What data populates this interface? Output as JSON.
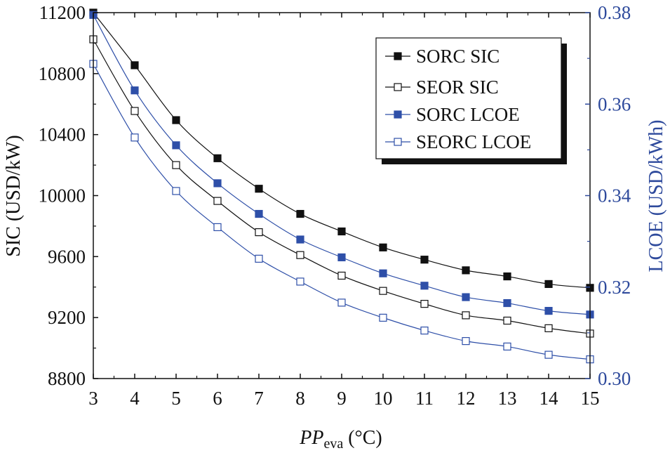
{
  "chart_data": {
    "type": "line",
    "x": [
      3,
      4,
      5,
      6,
      7,
      8,
      9,
      10,
      11,
      12,
      13,
      14,
      15
    ],
    "xlabel": {
      "main": "PP",
      "sub": "eva",
      "unit": " (°C)"
    },
    "xlim": [
      3,
      15
    ],
    "xticks": [
      "3",
      "4",
      "5",
      "6",
      "7",
      "8",
      "9",
      "10",
      "11",
      "12",
      "13",
      "14",
      "15"
    ],
    "y_left": {
      "label": "SIC (USD/kW)",
      "lim": [
        8800,
        11200
      ],
      "ticks": [
        "8800",
        "9200",
        "9600",
        "10000",
        "10400",
        "10800",
        "11200"
      ],
      "tick_values": [
        8800,
        9200,
        9600,
        10000,
        10400,
        10800,
        11200
      ]
    },
    "y_right": {
      "label": "LCOE (USD/kWh)",
      "lim": [
        0.3,
        0.38
      ],
      "ticks": [
        "0.30",
        "0.32",
        "0.34",
        "0.36",
        "0.38"
      ],
      "tick_values": [
        0.3,
        0.32,
        0.34,
        0.36,
        0.38
      ]
    },
    "series": [
      {
        "name": "SORC SIC",
        "axis": "left",
        "marker": "filled",
        "color": "#111111",
        "values": [
          11200,
          10855,
          10495,
          10245,
          10045,
          9880,
          9765,
          9660,
          9580,
          9510,
          9470,
          9420,
          9395
        ]
      },
      {
        "name": "SEOR  SIC",
        "axis": "left",
        "marker": "open",
        "color": "#111111",
        "values": [
          11025,
          10555,
          10200,
          9965,
          9760,
          9610,
          9475,
          9375,
          9290,
          9215,
          9180,
          9130,
          9095
        ]
      },
      {
        "name": "SORC  LCOE",
        "axis": "right",
        "marker": "filled",
        "color": "#2e4fa8",
        "values": [
          0.3795,
          0.363,
          0.351,
          0.3427,
          0.336,
          0.3304,
          0.3265,
          0.323,
          0.3203,
          0.3178,
          0.3165,
          0.3148,
          0.314
        ]
      },
      {
        "name": "SEORC LCOE",
        "axis": "right",
        "marker": "open",
        "color": "#2e4fa8",
        "values": [
          0.3688,
          0.3527,
          0.341,
          0.3331,
          0.3262,
          0.3212,
          0.3166,
          0.3133,
          0.3105,
          0.3082,
          0.307,
          0.3052,
          0.3042
        ]
      }
    ],
    "legend": {
      "position": "top-right"
    },
    "grid": false
  },
  "colors": {
    "axis": "#111111",
    "right_axis": "#2e4a9c"
  }
}
